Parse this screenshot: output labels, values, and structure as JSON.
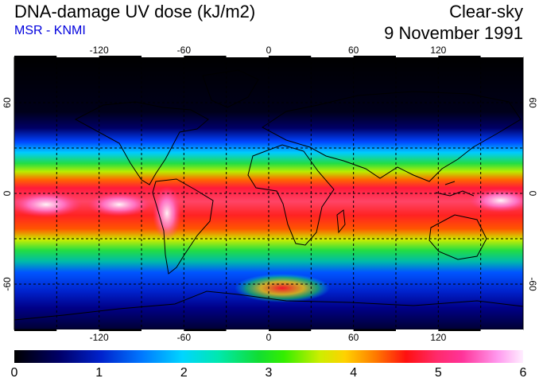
{
  "header": {
    "title": "DNA-damage UV dose (kJ/m2)",
    "subtitle": "MSR - KNMI",
    "condition": "Clear-sky",
    "date": "9 November 1991"
  },
  "map": {
    "projection": "equirectangular",
    "lon_range": [
      -180,
      180
    ],
    "lat_range": [
      -90,
      90
    ],
    "gridlines_lon": [
      -150,
      -120,
      -90,
      -60,
      -30,
      0,
      30,
      60,
      90,
      120,
      150
    ],
    "gridlines_lat": [
      60,
      30,
      0,
      -30,
      -60
    ],
    "lon_labels": [
      "-120",
      "-60",
      "0",
      "60",
      "120"
    ],
    "lon_label_values": [
      -120,
      -60,
      0,
      60,
      120
    ],
    "lat_labels": [
      "60",
      "0",
      "-60"
    ],
    "lat_label_values": [
      60,
      0,
      -60
    ],
    "grid": true
  },
  "colorbar": {
    "min": 0,
    "max": 6,
    "labels": [
      "0",
      "1",
      "2",
      "3",
      "4",
      "5",
      "6"
    ],
    "colors": [
      "#000000",
      "#0022cc",
      "#00d5ff",
      "#33ee00",
      "#ff7a00",
      "#ff3399",
      "#ffeeff"
    ]
  }
}
